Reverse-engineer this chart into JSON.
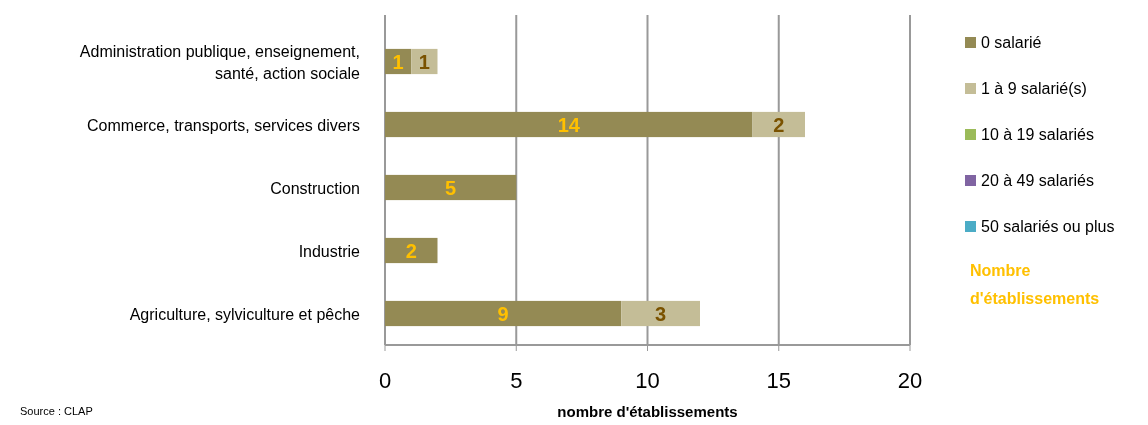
{
  "chart_data": {
    "type": "bar",
    "orientation": "horizontal",
    "stacked": true,
    "categories": [
      "Administration publique, enseignement, santé, action sociale",
      "Commerce, transports, services divers",
      "Construction",
      "Industrie",
      "Agriculture, sylviculture et pêche"
    ],
    "series": [
      {
        "name": "0 salarié",
        "color": "#948a54",
        "values": [
          1,
          14,
          5,
          2,
          9
        ],
        "value_labels": [
          "1",
          "14",
          "5",
          "2",
          "9"
        ]
      },
      {
        "name": "1 à 9 salarié(s)",
        "color": "#c4bd97",
        "values": [
          1,
          2,
          0,
          0,
          3
        ],
        "value_labels": [
          "1",
          "2",
          null,
          null,
          "3"
        ]
      },
      {
        "name": "10 à 19 salariés",
        "color": "#9bbb59",
        "values": [
          0,
          0,
          0,
          0,
          0
        ]
      },
      {
        "name": "20 à 49 salariés",
        "color": "#8064a2",
        "values": [
          0,
          0,
          0,
          0,
          0
        ]
      },
      {
        "name": "50 salariés ou plus",
        "color": "#4bacc6",
        "values": [
          0,
          0,
          0,
          0,
          0
        ]
      }
    ],
    "xlim": [
      0,
      20
    ],
    "xticks": [
      0,
      5,
      10,
      15,
      20
    ],
    "grid": "x",
    "legend": "right",
    "legend_title": "Nombre d'établissements",
    "xlabel": "nombre d'établissements",
    "annotations": [
      "Source : CLAP"
    ]
  }
}
